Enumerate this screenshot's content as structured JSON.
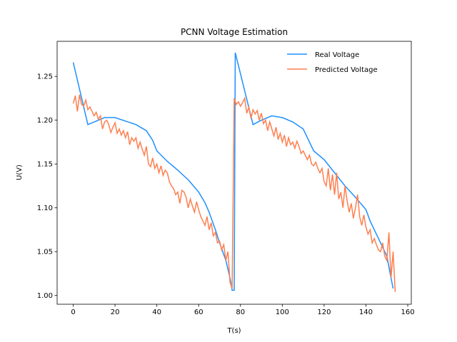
{
  "chart_data": {
    "type": "line",
    "title": "PCNN Voltage Estimation",
    "x_label": "T(s)",
    "y_label": "U(V)",
    "xlim": [
      -7.7,
      161.7
    ],
    "ylim": [
      0.99,
      1.29
    ],
    "xticks": [
      0,
      20,
      40,
      60,
      80,
      100,
      120,
      140,
      160
    ],
    "yticks": [
      {
        "value": 1.0,
        "label": "1.00"
      },
      {
        "value": 1.05,
        "label": "1.05"
      },
      {
        "value": 1.1,
        "label": "1.10"
      },
      {
        "value": 1.15,
        "label": "1.15"
      },
      {
        "value": 1.2,
        "label": "1.20"
      },
      {
        "value": 1.25,
        "label": "1.25"
      }
    ],
    "legend": "upper right",
    "grid": false,
    "series": [
      {
        "name": "Real Voltage",
        "color": "#1e90ff",
        "x": [
          0,
          7,
          10,
          15,
          20,
          25,
          30,
          35,
          38,
          40,
          45,
          50,
          55,
          60,
          63,
          65,
          68,
          70,
          73,
          75,
          76,
          77,
          77.5,
          86,
          90,
          95,
          100,
          105,
          110,
          112,
          115,
          120,
          125,
          130,
          135,
          140,
          142,
          145,
          150,
          152,
          153
        ],
        "values": [
          1.266,
          1.195,
          1.198,
          1.203,
          1.203,
          1.199,
          1.195,
          1.188,
          1.177,
          1.165,
          1.153,
          1.143,
          1.132,
          1.118,
          1.106,
          1.095,
          1.075,
          1.06,
          1.04,
          1.02,
          1.006,
          1.006,
          1.277,
          1.195,
          1.2,
          1.205,
          1.203,
          1.198,
          1.19,
          1.18,
          1.165,
          1.155,
          1.14,
          1.125,
          1.112,
          1.098,
          1.085,
          1.07,
          1.045,
          1.02,
          1.008
        ]
      },
      {
        "name": "Predicted Voltage",
        "color": "#ff7f50",
        "x": [
          0,
          1,
          2,
          3,
          4,
          5,
          6,
          7,
          8,
          9,
          10,
          11,
          12,
          13,
          14,
          15,
          16,
          17,
          18,
          19,
          20,
          21,
          22,
          23,
          24,
          25,
          26,
          27,
          28,
          29,
          30,
          31,
          32,
          33,
          34,
          35,
          36,
          37,
          38,
          39,
          40,
          41,
          42,
          43,
          44,
          45,
          46,
          47,
          48,
          49,
          50,
          51,
          52,
          53,
          54,
          55,
          56,
          57,
          58,
          59,
          60,
          61,
          62,
          63,
          64,
          65,
          66,
          67,
          68,
          69,
          70,
          71,
          72,
          73,
          74,
          75,
          76,
          77,
          78,
          79,
          80,
          81,
          82,
          83,
          84,
          85,
          86,
          87,
          88,
          89,
          90,
          91,
          92,
          93,
          94,
          95,
          96,
          97,
          98,
          99,
          100,
          101,
          102,
          103,
          104,
          105,
          106,
          107,
          108,
          109,
          110,
          111,
          112,
          113,
          114,
          115,
          116,
          117,
          118,
          119,
          120,
          121,
          122,
          123,
          124,
          125,
          126,
          127,
          128,
          129,
          130,
          131,
          132,
          133,
          134,
          135,
          136,
          137,
          138,
          139,
          140,
          141,
          142,
          143,
          144,
          145,
          146,
          147,
          148,
          149,
          150,
          151,
          152,
          153,
          154
        ],
        "values": [
          1.219,
          1.228,
          1.21,
          1.229,
          1.218,
          1.216,
          1.223,
          1.212,
          1.215,
          1.21,
          1.205,
          1.209,
          1.201,
          1.205,
          1.19,
          1.198,
          1.2,
          1.195,
          1.186,
          1.192,
          1.197,
          1.185,
          1.19,
          1.183,
          1.188,
          1.18,
          1.187,
          1.172,
          1.18,
          1.176,
          1.18,
          1.168,
          1.175,
          1.167,
          1.16,
          1.17,
          1.15,
          1.147,
          1.157,
          1.145,
          1.15,
          1.14,
          1.148,
          1.137,
          1.143,
          1.14,
          1.13,
          1.125,
          1.122,
          1.115,
          1.118,
          1.105,
          1.12,
          1.118,
          1.112,
          1.1,
          1.11,
          1.102,
          1.095,
          1.107,
          1.098,
          1.09,
          1.085,
          1.08,
          1.09,
          1.075,
          1.083,
          1.068,
          1.072,
          1.06,
          1.062,
          1.052,
          1.058,
          1.04,
          1.05,
          1.015,
          1.008,
          1.225,
          1.218,
          1.221,
          1.216,
          1.22,
          1.225,
          1.208,
          1.215,
          1.202,
          1.212,
          1.207,
          1.211,
          1.2,
          1.208,
          1.196,
          1.2,
          1.188,
          1.198,
          1.19,
          1.182,
          1.192,
          1.178,
          1.185,
          1.175,
          1.183,
          1.17,
          1.18,
          1.172,
          1.175,
          1.168,
          1.176,
          1.17,
          1.162,
          1.165,
          1.16,
          1.155,
          1.16,
          1.15,
          1.148,
          1.152,
          1.145,
          1.14,
          1.145,
          1.13,
          1.125,
          1.145,
          1.12,
          1.138,
          1.115,
          1.14,
          1.11,
          1.118,
          1.1,
          1.125,
          1.108,
          1.095,
          1.105,
          1.088,
          1.1,
          1.115,
          1.09,
          1.08,
          1.092,
          1.078,
          1.07,
          1.075,
          1.06,
          1.065,
          1.058,
          1.052,
          1.05,
          1.06,
          1.045,
          1.04,
          1.072,
          1.02,
          1.05,
          1.004
        ]
      }
    ]
  }
}
